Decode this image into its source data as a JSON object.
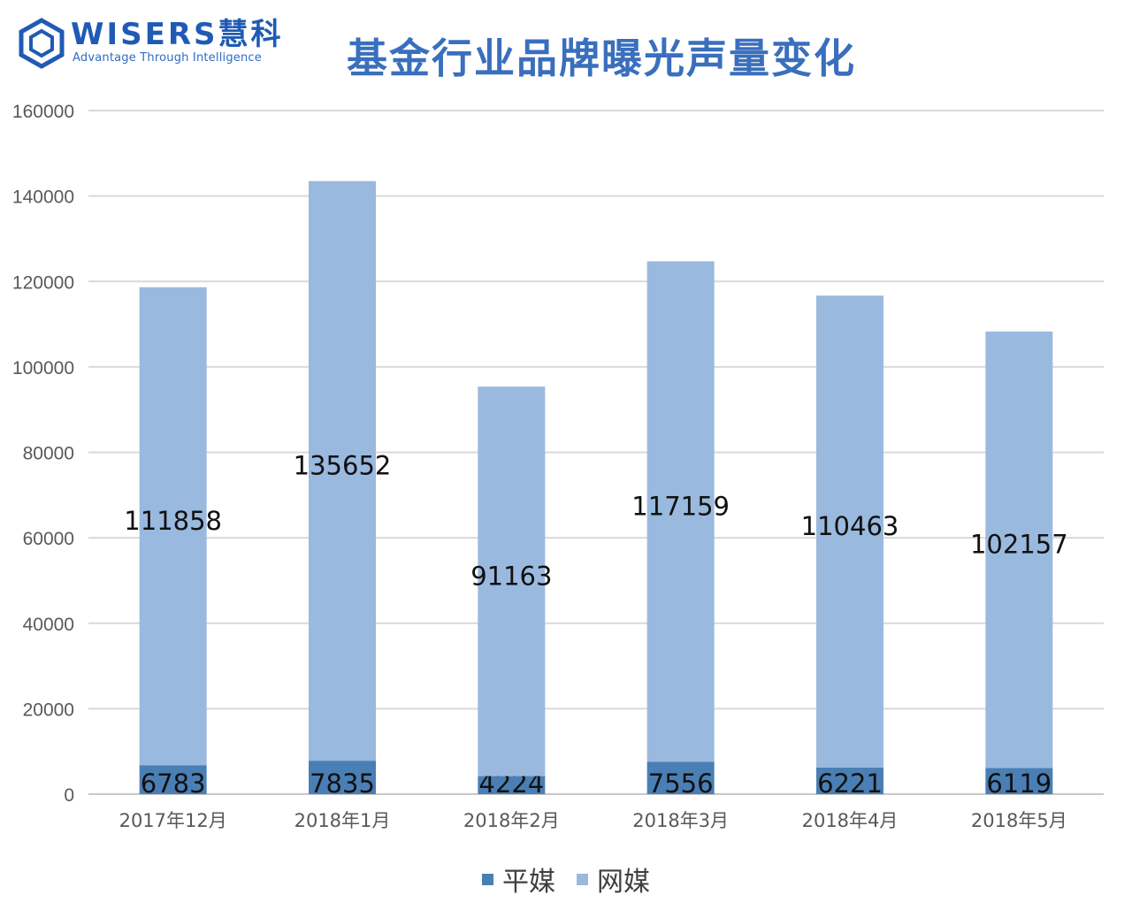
{
  "logo": {
    "wordmark": "WISERS慧科",
    "tagline": "Advantage Through Intelligence",
    "color": "#1f5bb5"
  },
  "chart_data": {
    "type": "bar",
    "stacked": true,
    "title": "基金行业品牌曝光声量变化",
    "categories": [
      "2017年12月",
      "2018年1月",
      "2018年2月",
      "2018年3月",
      "2018年4月",
      "2018年5月"
    ],
    "series": [
      {
        "name": "平媒",
        "values": [
          6783,
          7835,
          4224,
          7556,
          6221,
          6119
        ],
        "color": "#4a7fb5"
      },
      {
        "name": "网媒",
        "values": [
          111858,
          135652,
          91163,
          117159,
          110463,
          102157
        ],
        "color": "#9ab9df"
      }
    ],
    "ylim": [
      0,
      160000
    ],
    "yticks": [
      0,
      20000,
      40000,
      60000,
      80000,
      100000,
      120000,
      140000,
      160000
    ],
    "grid": true,
    "legend_position": "bottom",
    "data_labels": true
  }
}
